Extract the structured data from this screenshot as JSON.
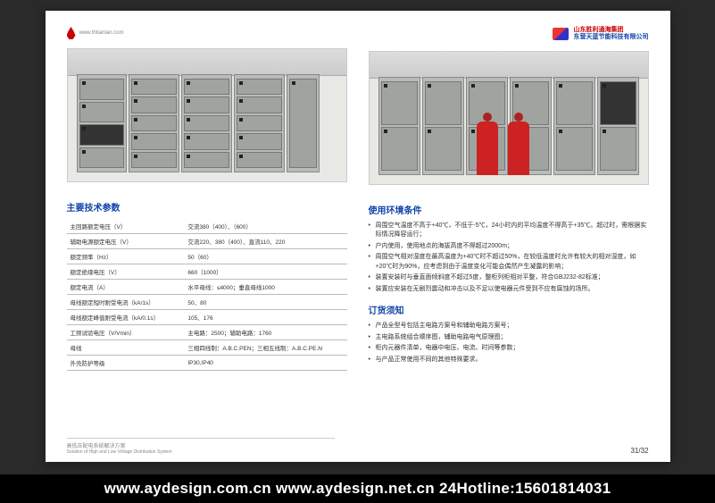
{
  "header": {
    "url": "www.thtianlan.com",
    "brand_line1": "山东胜利通海集团",
    "brand_line2": "东营天蓝节能科技有限公司"
  },
  "specs": {
    "title": "主要技术参数",
    "rows": [
      {
        "k": "主回路额定电压（V）",
        "v": "交流380（400）、（600）"
      },
      {
        "k": "辅助电源额定电压（V）",
        "v": "交流220、380（400）、直流110、220"
      },
      {
        "k": "额定频率（Hz）",
        "v": "50（60）"
      },
      {
        "k": "额定绝缘电压（V）",
        "v": "660（1000）"
      },
      {
        "k": "额定电流（A）",
        "v": "水平母线：≤4000；垂直母线1000"
      },
      {
        "k": "母线额定短时耐受电流（kA/1s）",
        "v": "50、80"
      },
      {
        "k": "母线额定峰值耐受电流（kA/0.1s）",
        "v": "105、176"
      },
      {
        "k": "工频试验电压（V/Vmin）",
        "v": "主电路：2500；辅助电路：1760"
      },
      {
        "k": "母线",
        "v": "三相四线制：A.B.C.PEN；三相五线制：A.B.C.PE.N"
      },
      {
        "k": "外壳防护等级",
        "v": "IP30,IP40"
      }
    ]
  },
  "env": {
    "title": "使用环境条件",
    "items": [
      "周围空气温度不高于+40℃，不低于-5℃，24小时内的平均温度不得高于+35℃。超过时，需根据实际情况降容运行；",
      "户内使用，使用地点的海拔高度不得超过2000m；",
      "周围空气相对湿度在最高温度为+40℃时不超过50%，在较低温度时允许有较大的相对湿度，如+20℃时为90%，应考虑到由于温度变化可能会偶然产生凝露的影响；",
      "装置安装时与垂直面倾斜度不超过5度，整柜列柜相对平整，符合GBJ232-82标准；",
      "装置应安装在无剧烈震动和冲击以及不足以使电器元件受到不应有腐蚀的场所。"
    ]
  },
  "order": {
    "title": "订货须知",
    "items": [
      "产品全型号包括主电路方案号和辅助电路方案号；",
      "主电路系统组合顺序图，辅助电路电气原理图；",
      "柜内元器件清单，电器中电压、电流、时间等参数；",
      "与产品正常使用不同的其他特殊要求。"
    ]
  },
  "foot": {
    "left_cn": "高低压配电系统解决方案",
    "left_en": "Solution of High and Low Voltage Distribution System",
    "pages": "31/32"
  },
  "footer_bar": "www.aydesign.com.cn www.aydesign.net.cn 24Hotline:15601814031",
  "colors": {
    "brand_red": "#c00",
    "brand_blue": "#14a",
    "bg": "#2a2a2a",
    "page": "#ffffff",
    "footer_bg": "#000000",
    "footer_fg": "#ffffff"
  }
}
